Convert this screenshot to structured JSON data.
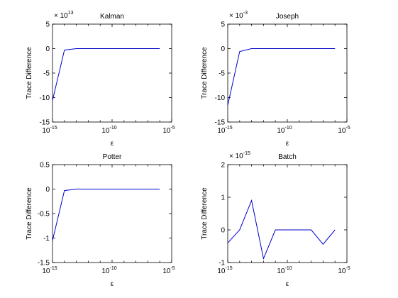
{
  "chart_data": [
    {
      "type": "line",
      "title": "Kalman",
      "xlabel": "ε",
      "ylabel": "Trace Difference",
      "xscale": "log",
      "xlim": [
        1e-15,
        1e-05
      ],
      "ylim": [
        -15,
        5
      ],
      "yticks": [
        -15,
        -10,
        -5,
        0,
        5
      ],
      "ytick_labels": [
        "-15",
        "-10",
        "-5",
        "0",
        "5"
      ],
      "yexponent": "13",
      "xtick_exponents": [
        "-15",
        "-10",
        "-5"
      ],
      "grid": false,
      "line_color": "#0000cc",
      "series": [
        {
          "x": [
            1e-15,
            1e-14,
            1e-13,
            1e-12,
            1e-11,
            1e-10,
            1e-09,
            1e-08,
            1e-07,
            1e-06
          ],
          "y": [
            -10.6,
            -0.3,
            0,
            0,
            0,
            0,
            0,
            0,
            0,
            0
          ]
        }
      ]
    },
    {
      "type": "line",
      "title": "Joseph",
      "xlabel": "ε",
      "ylabel": "Trace Difference",
      "xscale": "log",
      "xlim": [
        1e-15,
        1e-05
      ],
      "ylim": [
        -15,
        5
      ],
      "yticks": [
        -15,
        -10,
        -5,
        0,
        5
      ],
      "ytick_labels": [
        "-15",
        "-10",
        "-5",
        "0",
        "5"
      ],
      "yexponent": "-3",
      "xtick_exponents": [
        "-15",
        "-10",
        "-5"
      ],
      "grid": false,
      "line_color": "#0000cc",
      "series": [
        {
          "x": [
            1e-15,
            1e-14,
            1e-13,
            1e-12,
            1e-11,
            1e-10,
            1e-09,
            1e-08,
            1e-07,
            1e-06
          ],
          "y": [
            -11.6,
            -0.6,
            0,
            0,
            0,
            0,
            0,
            0,
            0,
            0
          ]
        }
      ]
    },
    {
      "type": "line",
      "title": "Potter",
      "xlabel": "ε",
      "ylabel": "Trace Difference",
      "xscale": "log",
      "xlim": [
        1e-15,
        1e-05
      ],
      "ylim": [
        -1.5,
        0.5
      ],
      "yticks": [
        -1.5,
        -1,
        -0.5,
        0,
        0.5
      ],
      "ytick_labels": [
        "-1.5",
        "-1",
        "-0.5",
        "0",
        "0.5"
      ],
      "yexponent": "",
      "xtick_exponents": [
        "-15",
        "-10",
        "-5"
      ],
      "grid": false,
      "line_color": "#0000cc",
      "series": [
        {
          "x": [
            1e-15,
            1e-14,
            1e-13,
            1e-12,
            1e-11,
            1e-10,
            1e-09,
            1e-08,
            1e-07,
            1e-06
          ],
          "y": [
            -1.05,
            -0.03,
            0,
            0,
            0,
            0,
            0,
            0,
            0,
            0
          ]
        }
      ]
    },
    {
      "type": "line",
      "title": "Batch",
      "xlabel": "ε",
      "ylabel": "Trace Difference",
      "xscale": "log",
      "xlim": [
        1e-15,
        1e-05
      ],
      "ylim": [
        -1,
        2
      ],
      "yticks": [
        -1,
        0,
        1,
        2
      ],
      "ytick_labels": [
        "-1",
        "0",
        "1",
        "2"
      ],
      "yexponent": "-15",
      "xtick_exponents": [
        "-15",
        "-10",
        "-5"
      ],
      "grid": false,
      "line_color": "#0000cc",
      "series": [
        {
          "x": [
            1e-15,
            1e-14,
            1e-13,
            1e-12,
            1e-11,
            1e-10,
            1e-09,
            1e-08,
            1e-07,
            1e-06
          ],
          "y": [
            -0.4,
            0,
            0.9,
            -0.88,
            0,
            0,
            0,
            0,
            -0.44,
            0
          ]
        }
      ]
    }
  ]
}
